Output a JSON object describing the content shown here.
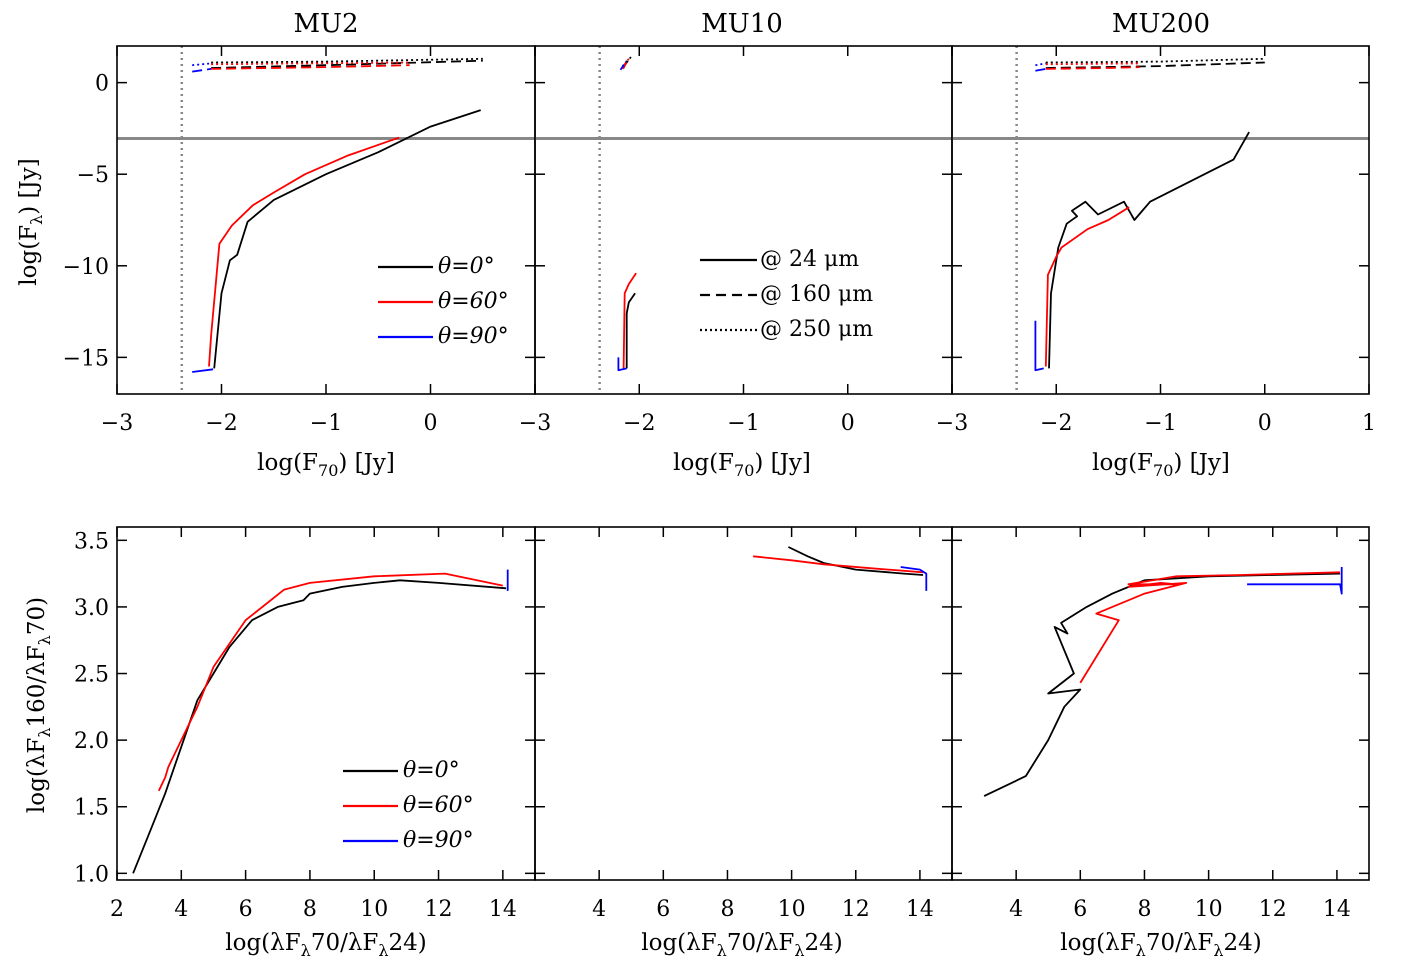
{
  "panel_titles": [
    "MU2",
    "MU10",
    "MU200"
  ],
  "colors": {
    "theta0": "#000000",
    "theta60": "#ff0000",
    "theta90": "#0000ff",
    "threshold": "#888888",
    "axis": "#000000"
  },
  "top_row": {
    "ylabel": "log(F_λ) [Jy]",
    "xlabel": "log(F_70) [Jy]",
    "xlim": [
      -3,
      1
    ],
    "ylim": [
      -17,
      2
    ],
    "x_ticks": [
      -3,
      -2,
      -1,
      0,
      1
    ],
    "y_ticks": [
      -15,
      -10,
      -5,
      0
    ],
    "y_tick_labels": [
      "−15",
      "−10",
      "−5",
      "0"
    ],
    "x_tick_labels": [
      [
        "−3",
        "−2",
        "−1",
        "0",
        ""
      ],
      [
        "−3",
        "−2",
        "−1",
        "0",
        ""
      ],
      [
        "−3",
        "−2",
        "−1",
        "0",
        "1"
      ]
    ],
    "vline_x": -2.38,
    "hline_y": -3.05
  },
  "bottom_row": {
    "ylabel": "log(λF_λ160/λF_λ70)",
    "xlabel": "log(λF_λ70/λF_λ24)",
    "xlim": [
      2,
      15
    ],
    "ylim": [
      0.95,
      3.6
    ],
    "x_ticks": [
      2,
      4,
      6,
      8,
      10,
      12,
      14
    ],
    "y_ticks": [
      1.0,
      1.5,
      2.0,
      2.5,
      3.0,
      3.5
    ],
    "y_tick_labels": [
      "1.0",
      "1.5",
      "2.0",
      "2.5",
      "3.0",
      "3.5"
    ],
    "x_tick_labels": [
      [
        "2",
        "4",
        "6",
        "8",
        "10",
        "12",
        "14"
      ],
      [
        "",
        "4",
        "6",
        "8",
        "10",
        "12",
        "14"
      ],
      [
        "",
        "4",
        "6",
        "8",
        "10",
        "12",
        "14"
      ]
    ]
  },
  "legend_angles": [
    {
      "label": "θ=0°",
      "color": "#000000"
    },
    {
      "label": "θ=60°",
      "color": "#ff0000"
    },
    {
      "label": "θ=90°",
      "color": "#0000ff"
    }
  ],
  "legend_wavelengths": [
    {
      "label": "@ 24 μm",
      "style": "solid"
    },
    {
      "label": "@ 160 μm",
      "style": "dashed"
    },
    {
      "label": "@ 250 μm",
      "style": "dotted"
    }
  ],
  "chart_data": [
    {
      "type": "line",
      "title": "MU2",
      "xlabel": "log(F70) [Jy]",
      "ylabel": "log(Fλ) [Jy]",
      "xlim": [
        -3,
        1
      ],
      "ylim": [
        -17,
        2
      ],
      "series": [
        {
          "name": "θ=0°",
          "wavelength": "24 μm",
          "color": "#000000",
          "style": "solid",
          "x": [
            -2.07,
            -2.0,
            -1.92,
            -1.85,
            -1.75,
            -1.5,
            -1.0,
            -0.5,
            0.0,
            0.48
          ],
          "y": [
            -15.6,
            -11.5,
            -9.7,
            -9.4,
            -7.6,
            -6.4,
            -5.0,
            -3.8,
            -2.4,
            -1.5
          ]
        },
        {
          "name": "θ=60°",
          "wavelength": "24 μm",
          "color": "#ff0000",
          "style": "solid",
          "x": [
            -2.12,
            -2.1,
            -2.02,
            -1.9,
            -1.7,
            -1.5,
            -1.2,
            -0.8,
            -0.4,
            -0.3
          ],
          "y": [
            -15.5,
            -13.8,
            -8.8,
            -7.8,
            -6.7,
            -6.0,
            -5.0,
            -4.0,
            -3.2,
            -3.0
          ]
        },
        {
          "name": "θ=90°",
          "wavelength": "24 μm",
          "color": "#0000ff",
          "style": "solid",
          "x": [
            -2.28,
            -2.08
          ],
          "y": [
            -15.8,
            -15.65
          ]
        },
        {
          "name": "θ=0°",
          "wavelength": "160 μm",
          "color": "#000000",
          "style": "dashed",
          "x": [
            -2.1,
            -1.0,
            0.5
          ],
          "y": [
            0.8,
            0.95,
            1.2
          ]
        },
        {
          "name": "θ=60°",
          "wavelength": "160 μm",
          "color": "#ff0000",
          "style": "dashed",
          "x": [
            -2.1,
            -1.0,
            -0.2
          ],
          "y": [
            0.75,
            0.85,
            0.95
          ]
        },
        {
          "name": "θ=90°",
          "wavelength": "160 μm",
          "color": "#0000ff",
          "style": "dashed",
          "x": [
            -2.28,
            -2.1
          ],
          "y": [
            0.6,
            0.75
          ]
        },
        {
          "name": "θ=0°",
          "wavelength": "250 μm",
          "color": "#000000",
          "style": "dotted",
          "x": [
            -2.1,
            -1.0,
            0.5
          ],
          "y": [
            1.1,
            1.15,
            1.3
          ]
        },
        {
          "name": "θ=60°",
          "wavelength": "250 μm",
          "color": "#ff0000",
          "style": "dotted",
          "x": [
            -2.1,
            -1.2,
            -0.2
          ],
          "y": [
            1.0,
            1.05,
            1.1
          ]
        },
        {
          "name": "θ=90°",
          "wavelength": "250 μm",
          "color": "#0000ff",
          "style": "dotted",
          "x": [
            -2.28,
            -2.1
          ],
          "y": [
            0.95,
            1.05
          ]
        }
      ]
    },
    {
      "type": "line",
      "title": "MU10",
      "xlabel": "log(F70) [Jy]",
      "ylabel": "log(Fλ) [Jy]",
      "xlim": [
        -3,
        1
      ],
      "ylim": [
        -17,
        2
      ],
      "series": [
        {
          "name": "θ=0°",
          "wavelength": "24 μm",
          "color": "#000000",
          "style": "solid",
          "x": [
            -2.12,
            -2.12,
            -2.1,
            -2.04
          ],
          "y": [
            -15.6,
            -12.6,
            -12.0,
            -11.5
          ]
        },
        {
          "name": "θ=60°",
          "wavelength": "24 μm",
          "color": "#ff0000",
          "style": "solid",
          "x": [
            -2.15,
            -2.14,
            -2.1,
            -2.03
          ],
          "y": [
            -15.6,
            -11.5,
            -11.0,
            -10.4
          ]
        },
        {
          "name": "θ=90°",
          "wavelength": "24 μm",
          "color": "#0000ff",
          "style": "solid",
          "x": [
            -2.2,
            -2.2,
            -2.12
          ],
          "y": [
            -15.0,
            -15.7,
            -15.6
          ]
        },
        {
          "name": "θ=0°",
          "wavelength": "160 μm",
          "color": "#000000",
          "style": "dashed",
          "x": [
            -2.15,
            -2.12
          ],
          "y": [
            0.8,
            1.2
          ]
        },
        {
          "name": "θ=60°",
          "wavelength": "160 μm",
          "color": "#ff0000",
          "style": "dashed",
          "x": [
            -2.16,
            -2.12
          ],
          "y": [
            0.75,
            1.1
          ]
        },
        {
          "name": "θ=90°",
          "wavelength": "160 μm",
          "color": "#0000ff",
          "style": "dashed",
          "x": [
            -2.18,
            -2.15
          ],
          "y": [
            0.7,
            0.95
          ]
        },
        {
          "name": "θ=0°",
          "wavelength": "250 μm",
          "color": "#000000",
          "style": "dotted",
          "x": [
            -2.12,
            -2.08
          ],
          "y": [
            1.1,
            1.4
          ]
        },
        {
          "name": "θ=60°",
          "wavelength": "250 μm",
          "color": "#ff0000",
          "style": "dotted",
          "x": [
            -2.14,
            -2.1
          ],
          "y": [
            1.0,
            1.3
          ]
        },
        {
          "name": "θ=90°",
          "wavelength": "250 μm",
          "color": "#0000ff",
          "style": "dotted",
          "x": [
            -2.16,
            -2.12
          ],
          "y": [
            0.9,
            1.15
          ]
        }
      ]
    },
    {
      "type": "line",
      "title": "MU200",
      "xlabel": "log(F70) [Jy]",
      "ylabel": "log(Fλ) [Jy]",
      "xlim": [
        -3,
        1
      ],
      "ylim": [
        -17,
        2
      ],
      "series": [
        {
          "name": "θ=0°",
          "wavelength": "24 μm",
          "color": "#000000",
          "style": "solid",
          "x": [
            -2.07,
            -2.05,
            -1.98,
            -1.9,
            -1.8,
            -1.85,
            -1.72,
            -1.6,
            -1.35,
            -1.25,
            -1.1,
            -0.3,
            -0.15
          ],
          "y": [
            -15.6,
            -11.5,
            -9.0,
            -7.7,
            -7.3,
            -7.0,
            -6.5,
            -7.2,
            -6.5,
            -7.5,
            -6.5,
            -4.2,
            -2.7
          ]
        },
        {
          "name": "θ=60°",
          "wavelength": "24 μm",
          "color": "#ff0000",
          "style": "solid",
          "x": [
            -2.1,
            -2.08,
            -2.0,
            -1.95,
            -1.7,
            -1.5,
            -1.3
          ],
          "y": [
            -15.5,
            -10.5,
            -9.5,
            -9.0,
            -8.0,
            -7.5,
            -6.8
          ]
        },
        {
          "name": "θ=90°",
          "wavelength": "24 μm",
          "color": "#0000ff",
          "style": "solid",
          "x": [
            -2.2,
            -2.2,
            -2.12
          ],
          "y": [
            -13.0,
            -15.7,
            -15.6
          ]
        },
        {
          "name": "θ=0°",
          "wavelength": "160 μm",
          "color": "#000000",
          "style": "dashed",
          "x": [
            -2.1,
            -1.0,
            0.0
          ],
          "y": [
            0.8,
            0.9,
            1.1
          ]
        },
        {
          "name": "θ=60°",
          "wavelength": "160 μm",
          "color": "#ff0000",
          "style": "dashed",
          "x": [
            -2.1,
            -1.5,
            -1.2
          ],
          "y": [
            0.75,
            0.8,
            0.85
          ]
        },
        {
          "name": "θ=90°",
          "wavelength": "160 μm",
          "color": "#0000ff",
          "style": "dashed",
          "x": [
            -2.2,
            -2.1
          ],
          "y": [
            0.65,
            0.75
          ]
        },
        {
          "name": "θ=0°",
          "wavelength": "250 μm",
          "color": "#000000",
          "style": "dotted",
          "x": [
            -2.1,
            -1.0,
            0.0
          ],
          "y": [
            1.1,
            1.15,
            1.3
          ]
        },
        {
          "name": "θ=60°",
          "wavelength": "250 μm",
          "color": "#ff0000",
          "style": "dotted",
          "x": [
            -2.1,
            -1.2
          ],
          "y": [
            1.0,
            1.05
          ]
        },
        {
          "name": "θ=90°",
          "wavelength": "250 μm",
          "color": "#0000ff",
          "style": "dotted",
          "x": [
            -2.2,
            -2.1
          ],
          "y": [
            0.95,
            1.05
          ]
        }
      ]
    },
    {
      "type": "line",
      "xlabel": "log(λFλ70/λFλ24)",
      "ylabel": "log(λFλ160/λFλ70)",
      "xlim": [
        2,
        15
      ],
      "ylim": [
        0.95,
        3.6
      ],
      "series": [
        {
          "name": "θ=0°",
          "color": "#000000",
          "x": [
            2.5,
            3.0,
            3.5,
            4.0,
            4.5,
            5.0,
            5.5,
            6.2,
            7.0,
            7.8,
            8.0,
            9.0,
            10.0,
            10.8,
            12.0,
            14.1
          ],
          "y": [
            1.0,
            1.3,
            1.6,
            1.95,
            2.3,
            2.5,
            2.7,
            2.9,
            3.0,
            3.05,
            3.1,
            3.15,
            3.18,
            3.2,
            3.18,
            3.14
          ]
        },
        {
          "name": "θ=60°",
          "color": "#ff0000",
          "x": [
            3.3,
            3.5,
            3.6,
            4.0,
            4.5,
            5.0,
            6.0,
            7.2,
            8.0,
            10.0,
            12.2,
            14.0
          ],
          "y": [
            1.62,
            1.72,
            1.8,
            2.0,
            2.25,
            2.55,
            2.9,
            3.13,
            3.18,
            3.23,
            3.25,
            3.16
          ]
        },
        {
          "name": "θ=90°",
          "color": "#0000ff",
          "x": [
            14.15,
            14.15
          ],
          "y": [
            3.12,
            3.28
          ]
        }
      ]
    },
    {
      "type": "line",
      "xlabel": "log(λFλ70/λFλ24)",
      "ylabel": "log(λFλ160/λFλ70)",
      "xlim": [
        2,
        15
      ],
      "ylim": [
        0.95,
        3.6
      ],
      "series": [
        {
          "name": "θ=0°",
          "color": "#000000",
          "x": [
            9.9,
            10.5,
            11.0,
            12.0,
            13.5,
            14.1
          ],
          "y": [
            3.45,
            3.38,
            3.33,
            3.28,
            3.25,
            3.24
          ]
        },
        {
          "name": "θ=60°",
          "color": "#ff0000",
          "x": [
            8.8,
            10.0,
            11.0,
            12.5,
            14.1
          ],
          "y": [
            3.38,
            3.35,
            3.32,
            3.29,
            3.26
          ]
        },
        {
          "name": "θ=90°",
          "color": "#0000ff",
          "x": [
            13.4,
            14.0,
            14.2,
            14.2
          ],
          "y": [
            3.3,
            3.28,
            3.25,
            3.12
          ]
        }
      ]
    },
    {
      "type": "line",
      "xlabel": "log(λFλ70/λFλ24)",
      "ylabel": "log(λFλ160/λFλ70)",
      "xlim": [
        2,
        15
      ],
      "ylim": [
        0.95,
        3.6
      ],
      "series": [
        {
          "name": "θ=0°",
          "color": "#000000",
          "x": [
            3.0,
            4.3,
            5.0,
            5.5,
            6.0,
            5.0,
            5.8,
            5.2,
            5.6,
            5.4,
            6.2,
            7.0,
            8.0,
            10.0,
            12.0,
            14.1
          ],
          "y": [
            1.58,
            1.73,
            2.0,
            2.25,
            2.38,
            2.35,
            2.5,
            2.85,
            2.8,
            2.88,
            3.0,
            3.1,
            3.2,
            3.23,
            3.24,
            3.25
          ]
        },
        {
          "name": "θ=60°",
          "color": "#ff0000",
          "x": [
            6.0,
            7.2,
            6.5,
            8.0,
            9.3,
            7.5,
            8.5,
            9.0,
            7.5,
            9.0,
            11.0,
            14.1
          ],
          "y": [
            2.43,
            2.9,
            2.95,
            3.1,
            3.18,
            3.15,
            3.18,
            3.17,
            3.17,
            3.23,
            3.24,
            3.26
          ]
        },
        {
          "name": "θ=90°",
          "color": "#0000ff",
          "x": [
            11.2,
            14.1,
            14.15,
            14.15
          ],
          "y": [
            3.17,
            3.17,
            3.1,
            3.3
          ]
        }
      ]
    }
  ]
}
